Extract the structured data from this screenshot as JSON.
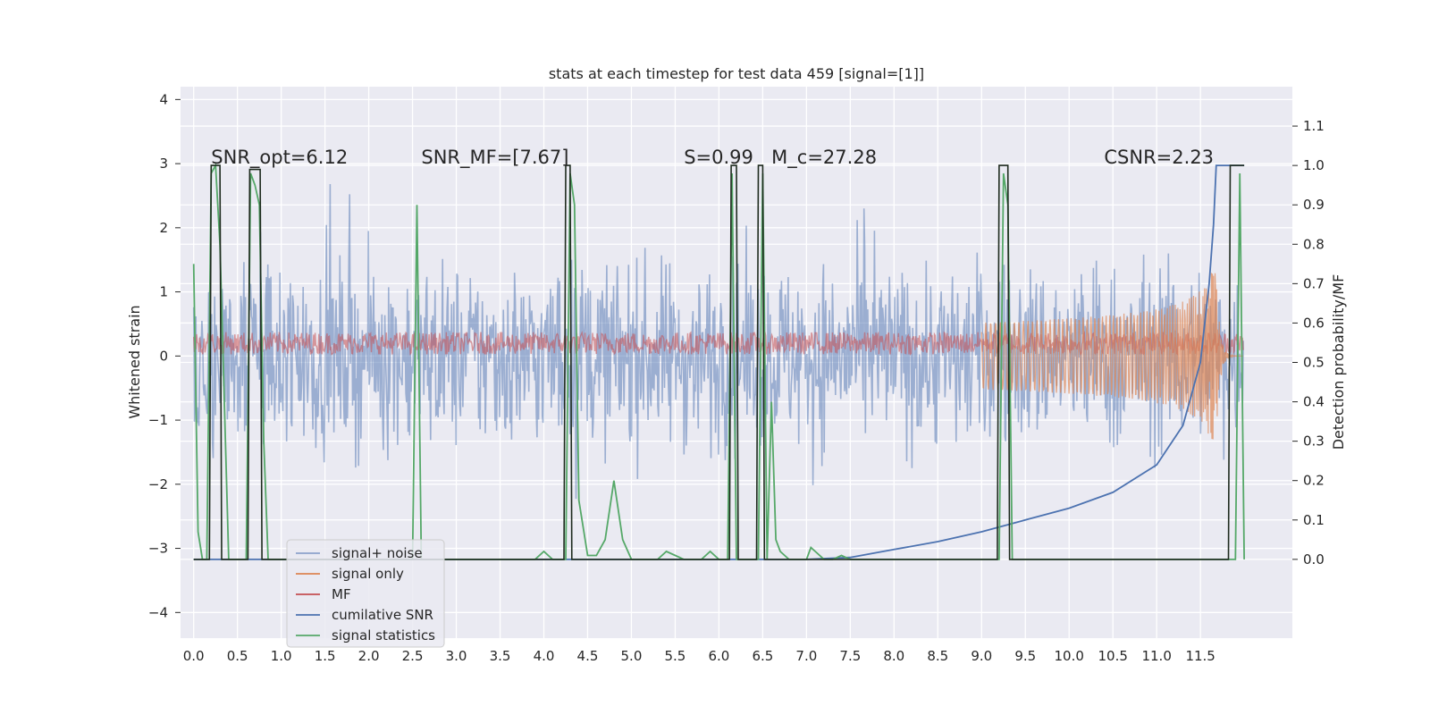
{
  "chart_data": {
    "type": "line",
    "title": "stats at each timestep for test data 459 [signal=[1]]",
    "ylabel": "Whitened strain",
    "y2label": "Detection probability/MF",
    "xlim": [
      -0.15,
      12.55
    ],
    "ylim": [
      -4.4,
      4.2
    ],
    "y2lim": [
      -0.2,
      1.2
    ],
    "x_ticks": [
      "0.0",
      "0.5",
      "1.0",
      "1.5",
      "2.0",
      "2.5",
      "3.0",
      "3.5",
      "4.0",
      "4.5",
      "5.0",
      "5.5",
      "6.0",
      "6.5",
      "7.0",
      "7.5",
      "8.0",
      "8.5",
      "9.0",
      "9.5",
      "10.0",
      "10.5",
      "11.0",
      "11.5"
    ],
    "y_ticks": [
      "4",
      "3",
      "2",
      "1",
      "0",
      "−1",
      "−2",
      "−3",
      "−4"
    ],
    "y2_ticks": [
      "1.1",
      "1.0",
      "0.9",
      "0.8",
      "0.7",
      "0.6",
      "0.5",
      "0.4",
      "0.3",
      "0.2",
      "0.1",
      "0.0"
    ],
    "grid": true,
    "legend_position": "lower-left",
    "annotations": [
      {
        "text": "SNR_opt=6.12",
        "x": 0.2
      },
      {
        "text": "SNR_MF=[7.67]",
        "x": 2.6
      },
      {
        "text": "S=0.99",
        "x": 5.6
      },
      {
        "text": "M_c=27.28",
        "x": 6.6
      },
      {
        "text": "CSNR=2.23",
        "x": 10.4
      }
    ],
    "series": [
      {
        "name": "signal+ noise",
        "color": "#4c72b0",
        "axis": "left",
        "kind": "noise",
        "amplitude_range": [
          -3.6,
          3.8
        ]
      },
      {
        "name": "signal only",
        "color": "#dd8452",
        "axis": "left",
        "kind": "chirp",
        "peak_x": 11.68,
        "peak_amplitude": 1.3
      },
      {
        "name": "MF",
        "color": "#c44e52",
        "axis": "left",
        "kind": "band",
        "level": 0.2
      },
      {
        "name": "cumilative SNR",
        "color": "#4c72b0",
        "axis": "right",
        "x": [
          0.0,
          7.0,
          7.5,
          8.0,
          8.5,
          9.0,
          9.5,
          10.0,
          10.5,
          11.0,
          11.3,
          11.5,
          11.6,
          11.65,
          11.68,
          12.0
        ],
        "y": [
          0.0,
          0.0,
          0.005,
          0.025,
          0.045,
          0.07,
          0.1,
          0.13,
          0.17,
          0.24,
          0.34,
          0.5,
          0.7,
          0.85,
          1.0,
          1.0
        ]
      },
      {
        "name": "signal statistics",
        "color": "#55a868",
        "axis": "right",
        "x": [
          0.0,
          0.05,
          0.1,
          0.15,
          0.2,
          0.25,
          0.3,
          0.35,
          0.4,
          0.45,
          0.5,
          0.55,
          0.6,
          0.65,
          0.7,
          0.75,
          0.8,
          0.85,
          0.9,
          1.0,
          2.5,
          2.55,
          2.6,
          2.65,
          3.5,
          3.9,
          4.0,
          4.1,
          4.25,
          4.3,
          4.35,
          4.4,
          4.5,
          4.6,
          4.7,
          4.8,
          4.9,
          5.0,
          5.3,
          5.4,
          5.6,
          5.8,
          5.9,
          6.0,
          6.1,
          6.15,
          6.2,
          6.25,
          6.35,
          6.45,
          6.5,
          6.55,
          6.6,
          6.65,
          6.7,
          6.8,
          7.0,
          7.05,
          7.1,
          7.2,
          7.3,
          7.4,
          7.5,
          7.6,
          9.0,
          9.2,
          9.25,
          9.3,
          9.35,
          11.85,
          11.9,
          11.95,
          12.0
        ],
        "y": [
          0.75,
          0.07,
          0.0,
          0.0,
          0.98,
          1.0,
          0.8,
          0.4,
          0.0,
          0.0,
          0.0,
          0.0,
          0.0,
          0.98,
          0.95,
          0.9,
          0.3,
          0.0,
          0.0,
          0.0,
          0.0,
          0.9,
          0.0,
          0.0,
          0.0,
          0.0,
          0.02,
          0.0,
          0.0,
          0.98,
          0.9,
          0.15,
          0.01,
          0.01,
          0.05,
          0.2,
          0.05,
          0.0,
          0.0,
          0.02,
          0.0,
          0.0,
          0.02,
          0.0,
          0.0,
          0.98,
          0.0,
          0.0,
          0.0,
          0.0,
          0.98,
          0.0,
          0.4,
          0.05,
          0.02,
          0.0,
          0.0,
          0.03,
          0.02,
          0.0,
          0.0,
          0.01,
          0.0,
          0.0,
          0.0,
          0.0,
          0.98,
          0.9,
          0.0,
          0.0,
          0.0,
          0.98,
          0.0
        ]
      },
      {
        "name": "",
        "color": "#1e2b1e",
        "axis": "right",
        "kind": "detection",
        "x": [
          0.0,
          0.18,
          0.2,
          0.3,
          0.32,
          0.62,
          0.64,
          0.76,
          0.78,
          4.23,
          4.25,
          4.3,
          4.32,
          6.12,
          6.14,
          6.2,
          6.22,
          6.43,
          6.45,
          6.5,
          6.52,
          9.18,
          9.2,
          9.3,
          9.32,
          11.82,
          11.84,
          12.0
        ],
        "y": [
          0.0,
          0.0,
          1.0,
          1.0,
          0.0,
          0.0,
          0.99,
          0.99,
          0.0,
          0.0,
          1.0,
          1.0,
          0.0,
          0.0,
          1.0,
          1.0,
          0.0,
          0.0,
          1.0,
          1.0,
          0.0,
          0.0,
          1.0,
          1.0,
          0.0,
          0.0,
          1.0,
          1.0
        ]
      }
    ],
    "legend": [
      "signal+ noise",
      "signal only",
      "MF",
      "cumilative SNR",
      "signal statistics"
    ]
  }
}
